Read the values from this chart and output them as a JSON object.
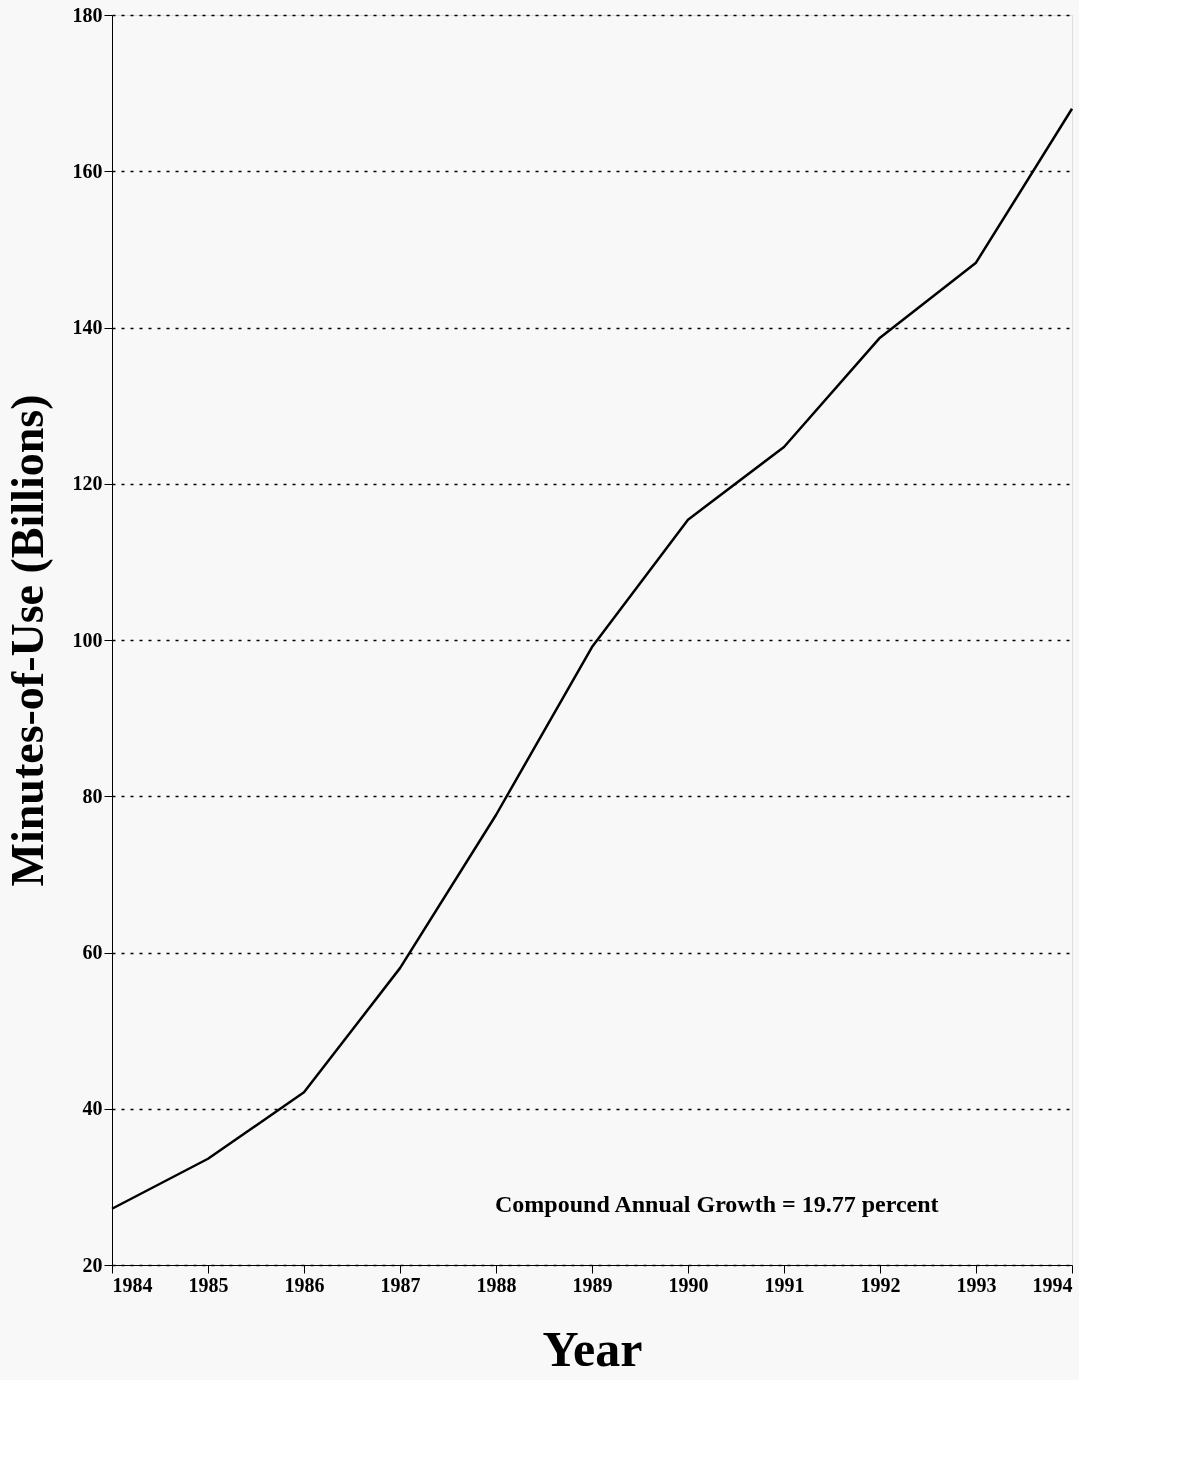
{
  "chart_data": {
    "type": "line",
    "xlabel": "Year",
    "ylabel": "Minutes-of-Use (Billions)",
    "x": [
      1984,
      1985,
      1986,
      1987,
      1988,
      1989,
      1990,
      1991,
      1992,
      1993,
      1994
    ],
    "series": [
      {
        "color": "#000000",
        "values": [
          27.2,
          33.6,
          42.1,
          58,
          77.6,
          99.1,
          115.4,
          124.7,
          138.7,
          148.3,
          168
        ]
      }
    ],
    "xlim": [
      1984,
      1994
    ],
    "xticks": [
      1984,
      1985,
      1986,
      1987,
      1988,
      1989,
      1990,
      1991,
      1992,
      1993,
      1994
    ],
    "ylim": [
      20,
      180
    ],
    "yticks": [
      20,
      40,
      60,
      80,
      100,
      120,
      140,
      160,
      180
    ],
    "grid": "y",
    "marker": "none",
    "line_style": "solid",
    "annotations": [
      "Compound Annual Growth = 19.77 percent"
    ]
  }
}
